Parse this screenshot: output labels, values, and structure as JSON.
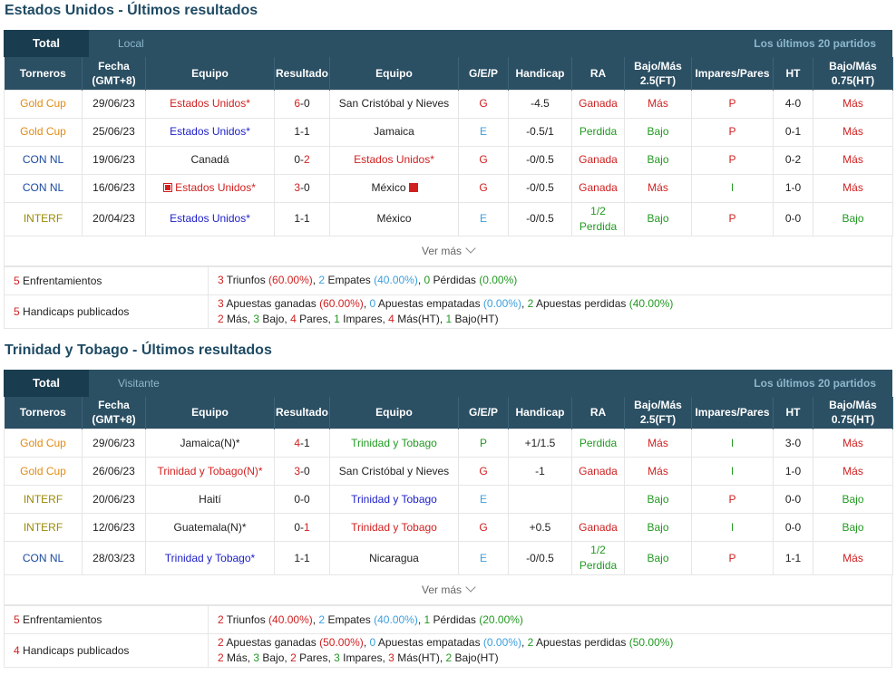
{
  "sections": [
    {
      "title": "Estados Unidos - Últimos resultados",
      "tabs": {
        "total": "Total",
        "other": "Local",
        "recent": "Los últimos 20 partidos"
      },
      "rows": [
        {
          "t": "Gold Cup",
          "tc": "orange",
          "d": "29/06/23",
          "h": "Estados Unidos*",
          "hc": "red",
          "hflag": false,
          "r1": "6",
          "r1c": "red",
          "r2": "0",
          "r2c": "dark",
          "a": "San Cristóbal y Nieves",
          "ac": "dark",
          "aflag": false,
          "g": "G",
          "gc": "red",
          "hcp": "-4.5",
          "ra": "Ganada",
          "ra2": "",
          "rac": "red",
          "bm": "Más",
          "bmc": "red",
          "ip": "P",
          "ipc": "red",
          "ht": "4-0",
          "bm2": "Más",
          "bm2c": "red"
        },
        {
          "t": "Gold Cup",
          "tc": "orange",
          "d": "25/06/23",
          "h": "Estados Unidos*",
          "hc": "nav",
          "hflag": false,
          "r1": "1",
          "r1c": "dark",
          "r2": "1",
          "r2c": "dark",
          "a": "Jamaica",
          "ac": "dark",
          "aflag": false,
          "g": "E",
          "gc": "lblue",
          "hcp": "-0.5/1",
          "ra": "Perdida",
          "ra2": "",
          "rac": "green",
          "bm": "Bajo",
          "bmc": "green",
          "ip": "P",
          "ipc": "red",
          "ht": "0-1",
          "bm2": "Más",
          "bm2c": "red"
        },
        {
          "t": "CON NL",
          "tc": "blue",
          "d": "19/06/23",
          "h": "Canadá",
          "hc": "dark",
          "hflag": false,
          "r1": "0",
          "r1c": "dark",
          "r2": "2",
          "r2c": "red",
          "a": "Estados Unidos*",
          "ac": "red",
          "aflag": false,
          "g": "G",
          "gc": "red",
          "hcp": "-0/0.5",
          "ra": "Ganada",
          "ra2": "",
          "rac": "red",
          "bm": "Bajo",
          "bmc": "green",
          "ip": "P",
          "ipc": "red",
          "ht": "0-2",
          "bm2": "Más",
          "bm2c": "red"
        },
        {
          "t": "CON NL",
          "tc": "blue",
          "d": "16/06/23",
          "h": "Estados Unidos*",
          "hc": "red",
          "hflag": true,
          "r1": "3",
          "r1c": "red",
          "r2": "0",
          "r2c": "dark",
          "a": "México",
          "ac": "dark",
          "aflag": true,
          "g": "G",
          "gc": "red",
          "hcp": "-0/0.5",
          "ra": "Ganada",
          "ra2": "",
          "rac": "red",
          "bm": "Más",
          "bmc": "red",
          "ip": "I",
          "ipc": "green",
          "ht": "1-0",
          "bm2": "Más",
          "bm2c": "red"
        },
        {
          "t": "INTERF",
          "tc": "olive",
          "d": "20/04/23",
          "h": "Estados Unidos*",
          "hc": "nav",
          "hflag": false,
          "r1": "1",
          "r1c": "dark",
          "r2": "1",
          "r2c": "dark",
          "a": "México",
          "ac": "dark",
          "aflag": false,
          "g": "E",
          "gc": "lblue",
          "hcp": "-0/0.5",
          "ra": "1/2",
          "ra2": "Perdida",
          "rac": "green",
          "bm": "Bajo",
          "bmc": "green",
          "ip": "P",
          "ipc": "red",
          "ht": "0-0",
          "bm2": "Bajo",
          "bm2c": "green",
          "tall": true
        }
      ],
      "summary": {
        "enf_count": "5",
        "enf_label": " Enfrentamientos",
        "enf": [
          [
            "3",
            "n-red"
          ],
          [
            " Triunfos ",
            ""
          ],
          [
            "(60.00%)",
            "n-red"
          ],
          [
            ", ",
            ""
          ],
          [
            "2",
            "n-blue"
          ],
          [
            " Empates ",
            ""
          ],
          [
            "(40.00%)",
            "n-blue"
          ],
          [
            ", ",
            ""
          ],
          [
            "0",
            "n-green"
          ],
          [
            " Pérdidas ",
            ""
          ],
          [
            "(0.00%)",
            "n-green"
          ]
        ],
        "hcp_count": "5",
        "hcp_label": " Handicaps publicados",
        "hcp1": [
          [
            "3",
            "n-red"
          ],
          [
            " Apuestas ganadas ",
            ""
          ],
          [
            "(60.00%)",
            "n-red"
          ],
          [
            ", ",
            ""
          ],
          [
            "0",
            "n-blue"
          ],
          [
            " Apuestas empatadas ",
            ""
          ],
          [
            "(0.00%)",
            "n-blue"
          ],
          [
            ", ",
            ""
          ],
          [
            "2",
            "n-green"
          ],
          [
            " Apuestas perdidas ",
            ""
          ],
          [
            "(40.00%)",
            "n-green"
          ]
        ],
        "hcp2": [
          [
            "2",
            "n-red"
          ],
          [
            " Más, ",
            ""
          ],
          [
            "3",
            "n-green"
          ],
          [
            " Bajo, ",
            ""
          ],
          [
            "4",
            "n-red"
          ],
          [
            " Pares, ",
            ""
          ],
          [
            "1",
            "n-green"
          ],
          [
            " Impares, ",
            ""
          ],
          [
            "4",
            "n-red"
          ],
          [
            " Más(HT), ",
            ""
          ],
          [
            "1",
            "n-green"
          ],
          [
            " Bajo(HT)",
            ""
          ]
        ]
      }
    },
    {
      "title": "Trinidad y Tobago - Últimos resultados",
      "tabs": {
        "total": "Total",
        "other": "Visitante",
        "recent": "Los últimos 20 partidos"
      },
      "rows": [
        {
          "t": "Gold Cup",
          "tc": "orange",
          "d": "29/06/23",
          "h": "Jamaica(N)*",
          "hc": "dark",
          "hflag": false,
          "r1": "4",
          "r1c": "red",
          "r2": "1",
          "r2c": "dark",
          "a": "Trinidad y Tobago",
          "ac": "green",
          "aflag": false,
          "g": "P",
          "gc": "green",
          "hcp": "+1/1.5",
          "ra": "Perdida",
          "ra2": "",
          "rac": "green",
          "bm": "Más",
          "bmc": "red",
          "ip": "I",
          "ipc": "green",
          "ht": "3-0",
          "bm2": "Más",
          "bm2c": "red"
        },
        {
          "t": "Gold Cup",
          "tc": "orange",
          "d": "26/06/23",
          "h": "Trinidad y Tobago(N)*",
          "hc": "red",
          "hflag": false,
          "r1": "3",
          "r1c": "red",
          "r2": "0",
          "r2c": "dark",
          "a": "San Cristóbal y Nieves",
          "ac": "dark",
          "aflag": false,
          "g": "G",
          "gc": "red",
          "hcp": "-1",
          "ra": "Ganada",
          "ra2": "",
          "rac": "red",
          "bm": "Más",
          "bmc": "red",
          "ip": "I",
          "ipc": "green",
          "ht": "1-0",
          "bm2": "Más",
          "bm2c": "red"
        },
        {
          "t": "INTERF",
          "tc": "olive",
          "d": "20/06/23",
          "h": "Haití",
          "hc": "dark",
          "hflag": false,
          "r1": "0",
          "r1c": "dark",
          "r2": "0",
          "r2c": "dark",
          "a": "Trinidad y Tobago",
          "ac": "nav",
          "aflag": false,
          "g": "E",
          "gc": "lblue",
          "hcp": "",
          "ra": "",
          "ra2": "",
          "rac": "dark",
          "bm": "Bajo",
          "bmc": "green",
          "ip": "P",
          "ipc": "red",
          "ht": "0-0",
          "bm2": "Bajo",
          "bm2c": "green"
        },
        {
          "t": "INTERF",
          "tc": "olive",
          "d": "12/06/23",
          "h": "Guatemala(N)*",
          "hc": "dark",
          "hflag": false,
          "r1": "0",
          "r1c": "dark",
          "r2": "1",
          "r2c": "red",
          "a": "Trinidad y Tobago",
          "ac": "red",
          "aflag": false,
          "g": "G",
          "gc": "red",
          "hcp": "+0.5",
          "ra": "Ganada",
          "ra2": "",
          "rac": "red",
          "bm": "Bajo",
          "bmc": "green",
          "ip": "I",
          "ipc": "green",
          "ht": "0-0",
          "bm2": "Bajo",
          "bm2c": "green"
        },
        {
          "t": "CON NL",
          "tc": "blue",
          "d": "28/03/23",
          "h": "Trinidad y Tobago*",
          "hc": "nav",
          "hflag": false,
          "r1": "1",
          "r1c": "dark",
          "r2": "1",
          "r2c": "dark",
          "a": "Nicaragua",
          "ac": "dark",
          "aflag": false,
          "g": "E",
          "gc": "lblue",
          "hcp": "-0/0.5",
          "ra": "1/2",
          "ra2": "Perdida",
          "rac": "green",
          "bm": "Bajo",
          "bmc": "green",
          "ip": "P",
          "ipc": "red",
          "ht": "1-1",
          "bm2": "Más",
          "bm2c": "red",
          "tall": true
        }
      ],
      "summary": {
        "enf_count": "5",
        "enf_label": " Enfrentamientos",
        "enf": [
          [
            "2",
            "n-red"
          ],
          [
            " Triunfos ",
            ""
          ],
          [
            "(40.00%)",
            "n-red"
          ],
          [
            ", ",
            ""
          ],
          [
            "2",
            "n-blue"
          ],
          [
            " Empates ",
            ""
          ],
          [
            "(40.00%)",
            "n-blue"
          ],
          [
            ", ",
            ""
          ],
          [
            "1",
            "n-green"
          ],
          [
            " Pérdidas ",
            ""
          ],
          [
            "(20.00%)",
            "n-green"
          ]
        ],
        "hcp_count": "4",
        "hcp_label": " Handicaps publicados",
        "hcp1": [
          [
            "2",
            "n-red"
          ],
          [
            " Apuestas ganadas ",
            ""
          ],
          [
            "(50.00%)",
            "n-red"
          ],
          [
            ", ",
            ""
          ],
          [
            "0",
            "n-blue"
          ],
          [
            " Apuestas empatadas ",
            ""
          ],
          [
            "(0.00%)",
            "n-blue"
          ],
          [
            ", ",
            ""
          ],
          [
            "2",
            "n-green"
          ],
          [
            " Apuestas perdidas ",
            ""
          ],
          [
            "(50.00%)",
            "n-green"
          ]
        ],
        "hcp2": [
          [
            "2",
            "n-red"
          ],
          [
            " Más, ",
            ""
          ],
          [
            "3",
            "n-green"
          ],
          [
            " Bajo, ",
            ""
          ],
          [
            "2",
            "n-red"
          ],
          [
            " Pares, ",
            ""
          ],
          [
            "3",
            "n-green"
          ],
          [
            " Impares, ",
            ""
          ],
          [
            "3",
            "n-red"
          ],
          [
            " Más(HT), ",
            ""
          ],
          [
            "2",
            "n-green"
          ],
          [
            " Bajo(HT)",
            ""
          ]
        ]
      }
    }
  ],
  "headers": [
    "Torneros",
    "Fecha (GMT+8)",
    "Equipo",
    "Resultado",
    "Equipo",
    "G/E/P",
    "Handicap",
    "RA",
    "Bajo/Más 2.5(FT)",
    "Impares/Pares",
    "HT",
    "Bajo/Más 0.75(HT)"
  ],
  "ver_mas": "Ver más"
}
